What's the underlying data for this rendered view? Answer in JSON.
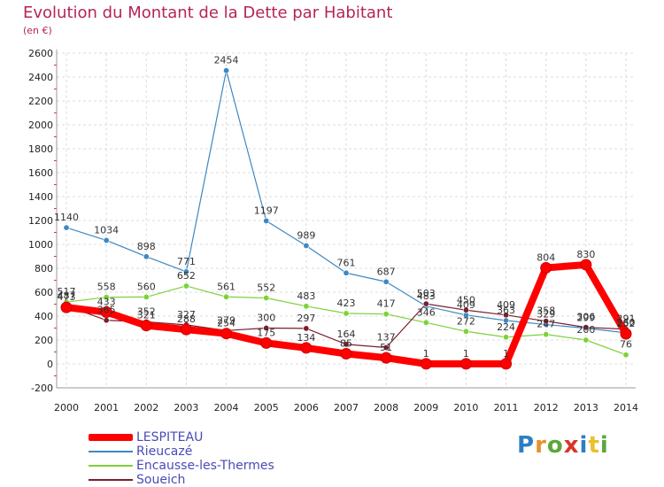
{
  "header": {
    "title": "Evolution du Montant de la Dette par Habitant",
    "subtitle": "(en €)"
  },
  "logo": {
    "text": "Proxiti"
  },
  "chart_data": {
    "type": "line",
    "title": "Evolution du Montant de la Dette par Habitant",
    "subtitle": "(en €)",
    "xlabel": "",
    "ylabel": "",
    "categories": [
      "2000",
      "2001",
      "2002",
      "2003",
      "2004",
      "2005",
      "2006",
      "2007",
      "2008",
      "2009",
      "2010",
      "2011",
      "2012",
      "2013",
      "2014"
    ],
    "ylim": [
      -200,
      2600
    ],
    "yticks": [
      "-200",
      "0",
      "200",
      "400",
      "600",
      "800",
      "1000",
      "1200",
      "1400",
      "1600",
      "1800",
      "2000",
      "2200",
      "2400",
      "2600"
    ],
    "grid": true,
    "legend_position": "bottom-left",
    "series": [
      {
        "name": "LESPITEAU",
        "color": "#ff0000",
        "values": [
          473,
          433,
          321,
          288,
          254,
          175,
          134,
          85,
          51,
          1,
          1,
          1,
          804,
          830,
          252
        ],
        "labels": [
          "473",
          "433",
          "321",
          "288",
          "254",
          "175",
          "134",
          "85",
          "51",
          "1",
          "1",
          "1",
          "804",
          "830",
          "252"
        ]
      },
      {
        "name": "Rieucazé",
        "color": "#3d88c4",
        "values": [
          1140,
          1034,
          898,
          771,
          2454,
          1197,
          989,
          761,
          687,
          483,
          409,
          363,
          329,
          299,
          260
        ],
        "labels": [
          "1140",
          "1034",
          "898",
          "771",
          "2454",
          "1197",
          "989",
          "761",
          "687",
          "483",
          "409",
          "363",
          "329",
          "299",
          "260"
        ]
      },
      {
        "name": "Encausse-les-Thermes",
        "color": "#7dd13a",
        "values": [
          517,
          558,
          560,
          652,
          561,
          552,
          483,
          423,
          417,
          346,
          272,
          224,
          247,
          200,
          76
        ],
        "labels": [
          "517",
          "558",
          "560",
          "652",
          "561",
          "552",
          "483",
          "423",
          "417",
          "346",
          "272",
          "224",
          "247",
          "200",
          "76"
        ]
      },
      {
        "name": "Soueich",
        "color": "#7a1f2e",
        "values": [
          487,
          365,
          352,
          327,
          279,
          300,
          297,
          164,
          137,
          503,
          450,
          409,
          358,
          306,
          291
        ],
        "labels": [
          "487",
          "365",
          "352",
          "327",
          "279",
          "300",
          "297",
          "164",
          "137",
          "503",
          "450",
          "409",
          "358",
          "306",
          "291"
        ]
      }
    ]
  }
}
